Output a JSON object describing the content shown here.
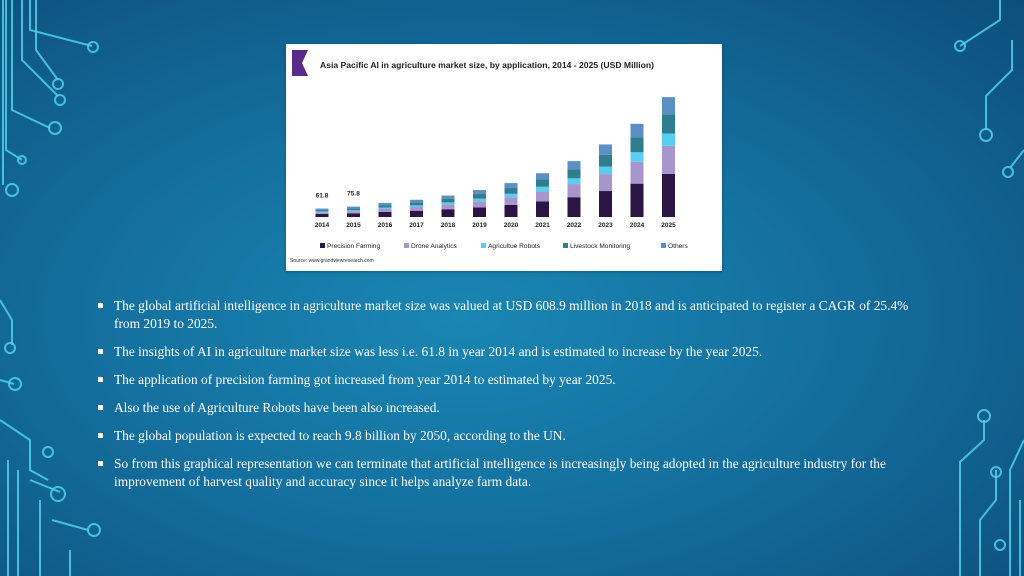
{
  "chart_data": {
    "type": "bar",
    "stacked": true,
    "title": "Asia Pacific AI in agriculture market size, by application, 2014 - 2025 (USD Million)",
    "categories": [
      "2014",
      "2015",
      "2016",
      "2017",
      "2018",
      "2019",
      "2020",
      "2021",
      "2022",
      "2023",
      "2024",
      "2025"
    ],
    "series": [
      {
        "name": "Precision Farming",
        "color": "#2b1545",
        "values": [
          22,
          27,
          37,
          46,
          57,
          70,
          88,
          114,
          145,
          190,
          244,
          315
        ]
      },
      {
        "name": "Drone Analytics",
        "color": "#a796cb",
        "values": [
          13,
          16,
          22,
          27,
          35,
          45,
          57,
          74,
          96,
          124,
          160,
          206
        ]
      },
      {
        "name": "Agricultue Robots",
        "color": "#59cef0",
        "values": [
          6,
          7,
          10,
          12,
          15,
          19,
          25,
          33,
          42,
          55,
          70,
          90
        ]
      },
      {
        "name": "Livestock Monitoring",
        "color": "#2f7e8e",
        "values": [
          11,
          14,
          18,
          22,
          27,
          34,
          42,
          53,
          67,
          86,
          110,
          140
        ]
      },
      {
        "name": "Others",
        "color": "#5b8fc6",
        "values": [
          9.8,
          11.8,
          16,
          19,
          23,
          29,
          36,
          46,
          59,
          76,
          98,
          126
        ]
      }
    ],
    "data_labels": [
      {
        "category": "2014",
        "text": "61.8"
      },
      {
        "category": "2015",
        "text": "75.8"
      }
    ],
    "ylim": [
      0,
      900
    ],
    "grid": false,
    "legend_position": "bottom",
    "source": "Source: www.grandviewresearch.com"
  },
  "bullets": [
    "The global artificial intelligence in agriculture market size was valued at USD 608.9 million in 2018 and is anticipated to register a CAGR of 25.4% from 2019 to 2025.",
    "The insights of AI in agriculture market size was less i.e. 61.8 in year 2014 and is estimated to increase by the year 2025.",
    "The application of precision farming got increased from year 2014 to estimated by year 2025.",
    "Also the use of Agriculture Robots have been also increased.",
    "The global population is expected to reach 9.8 billion by 2050, according to the UN.",
    "So from this graphical representation we can terminate that  artificial intelligence is increasingly being adopted in the agriculture industry for the improvement of harvest quality and accuracy since it helps analyze farm data."
  ],
  "colors": {
    "accent_line": "#4fd2ea",
    "title_mark": "#5a2a8a"
  }
}
